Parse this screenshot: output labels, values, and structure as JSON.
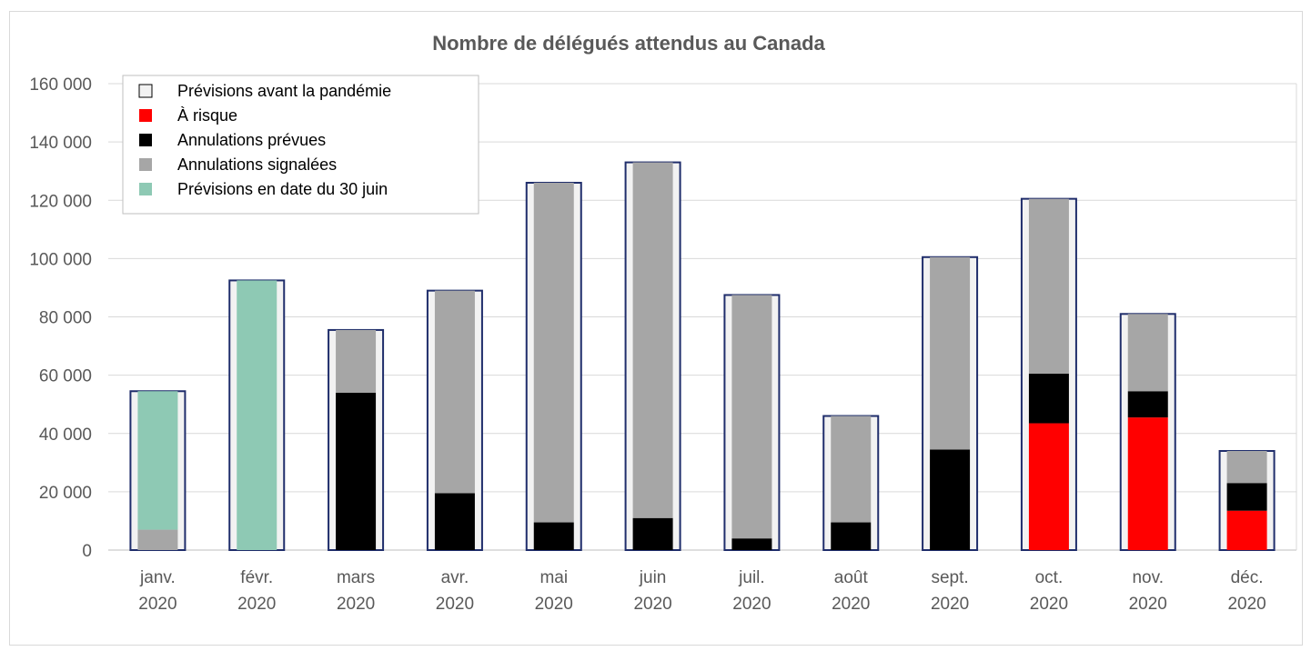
{
  "chart_data": {
    "type": "bar",
    "stacked": true,
    "title": "Nombre de délégués attendus au Canada",
    "xlabel": "",
    "ylabel": "",
    "ylim": [
      0,
      160000
    ],
    "yticks": [
      "0",
      "20 000",
      "40 000",
      "60 000",
      "80 000",
      "100 000",
      "120 000",
      "140 000",
      "160 000"
    ],
    "ytick_values": [
      0,
      20000,
      40000,
      60000,
      80000,
      100000,
      120000,
      140000,
      160000
    ],
    "grid": true,
    "legend_position": "top-left",
    "categories": [
      [
        "janv.",
        "2020"
      ],
      [
        "févr.",
        "2020"
      ],
      [
        "mars",
        "2020"
      ],
      [
        "avr.",
        "2020"
      ],
      [
        "mai",
        "2020"
      ],
      [
        "juin",
        "2020"
      ],
      [
        "juil.",
        "2020"
      ],
      [
        "août",
        "2020"
      ],
      [
        "sept.",
        "2020"
      ],
      [
        "oct.",
        "2020"
      ],
      [
        "nov.",
        "2020"
      ],
      [
        "déc.",
        "2020"
      ]
    ],
    "pre_pandemic": {
      "name": "Prévisions avant la pandémie",
      "color": "#f2f2f2",
      "border": "#1f2d6b",
      "values": [
        54500,
        92500,
        75500,
        89000,
        126000,
        133000,
        87500,
        46000,
        100500,
        120500,
        81000,
        34000
      ]
    },
    "series": [
      {
        "name": "À risque",
        "color": "#ff0000",
        "values": [
          0,
          0,
          0,
          0,
          0,
          0,
          0,
          0,
          0,
          43500,
          45500,
          13500
        ]
      },
      {
        "name": "Annulations prévues",
        "color": "#000000",
        "values": [
          0,
          0,
          54000,
          19500,
          9500,
          11000,
          4000,
          9500,
          34500,
          17000,
          9000,
          9500
        ]
      },
      {
        "name": "Annulations signalées",
        "color": "#a6a6a6",
        "values": [
          7000,
          0,
          21500,
          69500,
          116500,
          122000,
          83500,
          36500,
          66000,
          60000,
          26500,
          11000
        ]
      },
      {
        "name": "Prévisions en date du 30 juin",
        "color": "#8ec9b4",
        "values": [
          47500,
          92500,
          0,
          0,
          0,
          0,
          0,
          0,
          0,
          0,
          0,
          0
        ]
      }
    ]
  }
}
